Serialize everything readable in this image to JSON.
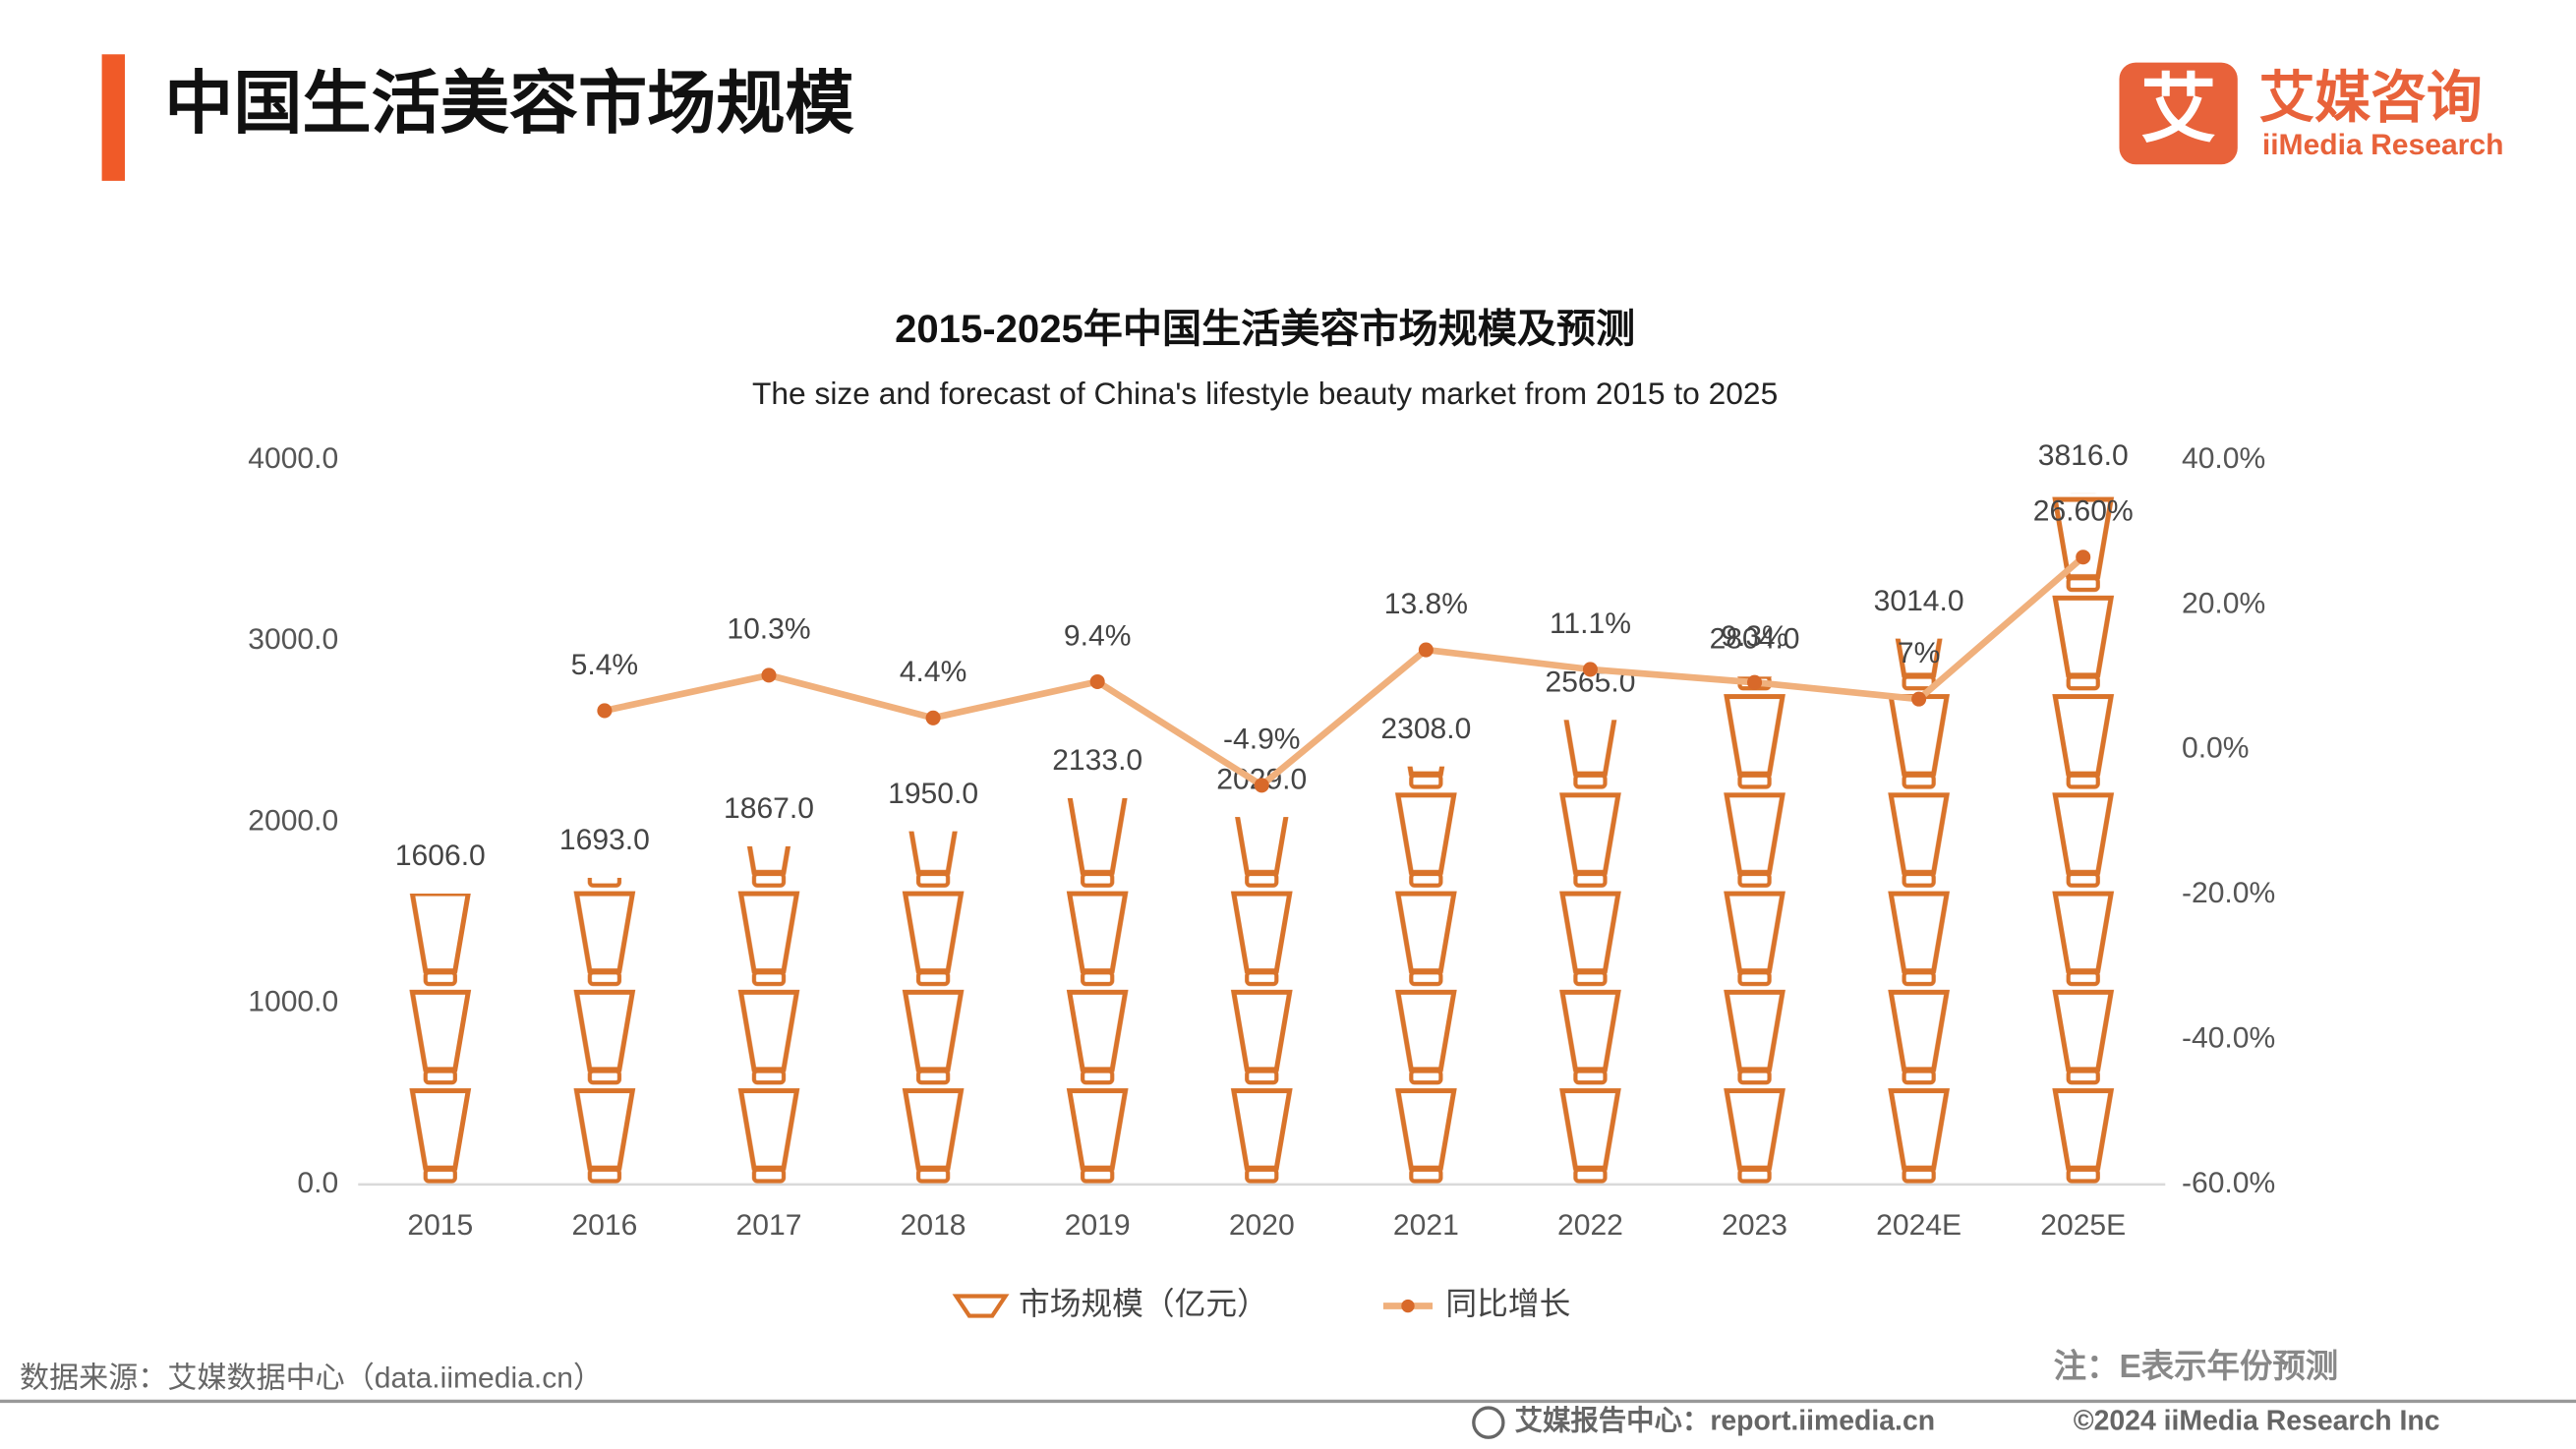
{
  "header": {
    "title": "中国生活美容市场规模",
    "logo_mark": "艾",
    "logo_text": "艾媒咨询",
    "logo_subtext": "iiMedia Research"
  },
  "chart_data": {
    "type": "bar-line",
    "title": "2015-2025年中国生活美容市场规模及预测",
    "subtitle": "The size and forecast of China's lifestyle beauty market from 2015 to 2025",
    "categories": [
      "2015",
      "2016",
      "2017",
      "2018",
      "2019",
      "2020",
      "2021",
      "2022",
      "2023",
      "2024E",
      "2025E"
    ],
    "series": [
      {
        "name": "市场规模（亿元）",
        "color": "#d9732a",
        "values": [
          1606,
          1693,
          1867,
          1950,
          2133,
          2029,
          2308,
          2565,
          2804,
          3014,
          3816
        ],
        "value_labels": [
          "1606.0",
          "1693.0",
          "1867.0",
          "1950.0",
          "2133.0",
          "2029.0",
          "2308.0",
          "2565.0",
          "2804.0",
          "3014.0",
          "3816.0"
        ]
      },
      {
        "name": "同比增长",
        "color": "#f0b07c",
        "marker_color": "#d8692a",
        "axis": "y2",
        "values": [
          null,
          5.4,
          10.3,
          4.4,
          9.4,
          -4.9,
          13.8,
          11.1,
          9.3,
          7,
          26.6
        ],
        "value_labels": [
          null,
          "5.4%",
          "10.3%",
          "4.4%",
          "9.4%",
          "-4.9%",
          "13.8%",
          "11.1%",
          "9.3%",
          "7%",
          "26.60%"
        ]
      }
    ],
    "ylim": [
      0,
      4000
    ],
    "yticks": [
      {
        "value": 0,
        "label": "0.0"
      },
      {
        "value": 1000,
        "label": "1000.0"
      },
      {
        "value": 2000,
        "label": "2000.0"
      },
      {
        "value": 3000,
        "label": "3000.0"
      },
      {
        "value": 4000,
        "label": "4000.0"
      }
    ],
    "y2lim": [
      -60,
      40
    ],
    "y2ticks": [
      {
        "value": -60,
        "label": "-60.0%"
      },
      {
        "value": -40,
        "label": "-40.0%"
      },
      {
        "value": -20,
        "label": "-20.0%"
      },
      {
        "value": 0,
        "label": "0.0%"
      },
      {
        "value": 20,
        "label": "20.0%"
      },
      {
        "value": 40,
        "label": "40.0%"
      }
    ],
    "legend": "bottom"
  },
  "footer": {
    "source": "数据来源：艾媒数据中心（data.iimedia.cn）",
    "note": "注：E表示年份预测",
    "report_center": "艾媒报告中心：report.iimedia.cn",
    "copyright": "©2024  iiMedia Research  Inc"
  }
}
